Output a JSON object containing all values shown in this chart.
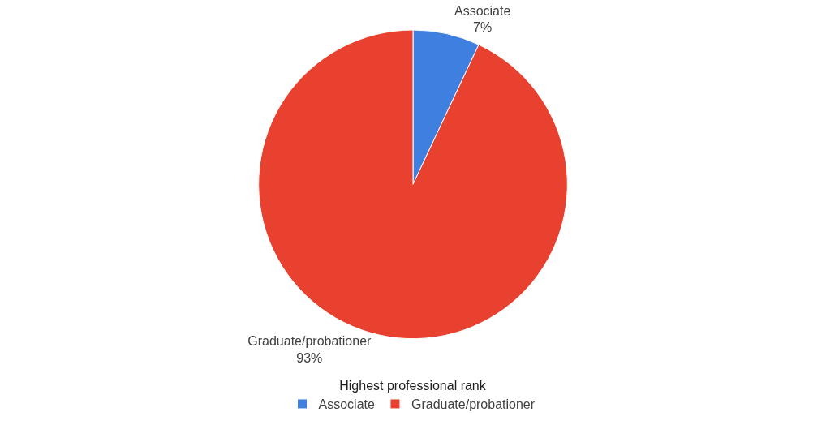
{
  "chart_data": {
    "type": "pie",
    "categories": [
      "Associate",
      "Graduate/probationer"
    ],
    "values": [
      7,
      93
    ],
    "value_labels": [
      "7%",
      "93%"
    ],
    "colors": [
      "#3f7fe0",
      "#e8412f"
    ],
    "legend": "bottom",
    "legend_title": "Highest professional rank"
  }
}
